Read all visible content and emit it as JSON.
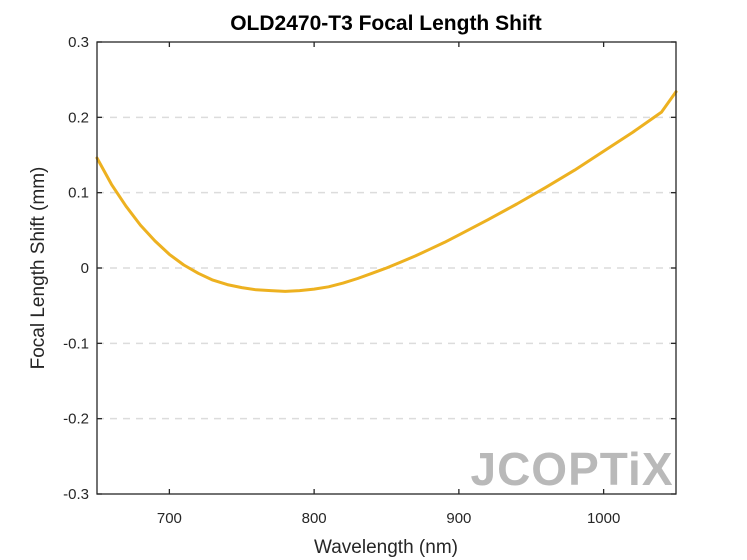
{
  "chart_data": {
    "type": "line",
    "title": "OLD2470-T3 Focal Length Shift",
    "xlabel": "Wavelength (nm)",
    "ylabel": "Focal Length Shift (mm)",
    "xlim": [
      650,
      1050
    ],
    "ylim": [
      -0.3,
      0.3
    ],
    "xticks": [
      700,
      800,
      900,
      1000
    ],
    "yticks": [
      -0.3,
      -0.2,
      -0.1,
      0,
      0.1,
      0.2,
      0.3
    ],
    "ytick_labels": [
      "-0.3",
      "-0.2",
      "-0.1",
      "0",
      "0.1",
      "0.2",
      "0.3"
    ],
    "grid": "horizontal dashed",
    "series": [
      {
        "color": "#EDB120",
        "x": [
          650,
          660,
          670,
          680,
          690,
          700,
          710,
          720,
          730,
          740,
          750,
          760,
          770,
          780,
          790,
          800,
          810,
          820,
          830,
          840,
          850,
          860,
          870,
          880,
          890,
          900,
          920,
          940,
          960,
          980,
          1000,
          1020,
          1040,
          1050
        ],
        "y": [
          0.146,
          0.111,
          0.082,
          0.057,
          0.036,
          0.018,
          0.004,
          -0.007,
          -0.016,
          -0.022,
          -0.026,
          -0.029,
          -0.03,
          -0.031,
          -0.03,
          -0.028,
          -0.025,
          -0.02,
          -0.014,
          -0.007,
          0.0,
          0.008,
          0.016,
          0.025,
          0.034,
          0.044,
          0.064,
          0.085,
          0.107,
          0.13,
          0.155,
          0.18,
          0.207,
          0.234
        ]
      }
    ]
  },
  "watermark": {
    "text": "JCOPTiX",
    "color": "#b9b9b9"
  }
}
